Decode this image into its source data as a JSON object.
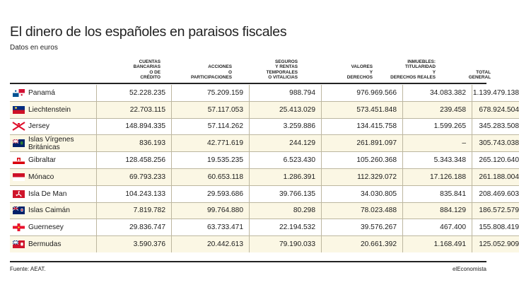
{
  "title": "El dinero de los españoles en paraisos fiscales",
  "subtitle": "Datos en euros",
  "headers": [
    "CUENTAS BANCARIAS O DE CRÉDITO",
    "ACCIONES O PARTICIPACIONES",
    "SEGUROS Y RENTAS TEMPORALES O VITALICIAS",
    "VALORES Y DERECHOS",
    "INMUEBLES: TITULARIDAD Y DERECHOS REALES",
    "TOTAL GENERAL"
  ],
  "rows": [
    {
      "name": "Panamá",
      "flag": "panama-flag-icon",
      "values": [
        "52.228.235",
        "75.209.159",
        "988.794",
        "976.969.566",
        "34.083.382",
        "1.139.479.138"
      ]
    },
    {
      "name": "Liechtenstein",
      "flag": "liechtenstein-flag-icon",
      "values": [
        "22.703.115",
        "57.117.053",
        "25.413.029",
        "573.451.848",
        "239.458",
        "678.924.504"
      ]
    },
    {
      "name": "Jersey",
      "flag": "jersey-flag-icon",
      "values": [
        "148.894.335",
        "57.114.262",
        "3.259.886",
        "134.415.758",
        "1.599.265",
        "345.283.508"
      ]
    },
    {
      "name": "Islas Vírgenes Británicas",
      "flag": "bvi-flag-icon",
      "values": [
        "836.193",
        "42.771.619",
        "244.129",
        "261.891.097",
        "–",
        "305.743.038"
      ]
    },
    {
      "name": "Gibraltar",
      "flag": "gibraltar-flag-icon",
      "values": [
        "128.458.256",
        "19.535.235",
        "6.523.430",
        "105.260.368",
        "5.343.348",
        "265.120.640"
      ]
    },
    {
      "name": "Mónaco",
      "flag": "monaco-flag-icon",
      "values": [
        "69.793.233",
        "60.653.118",
        "1.286.391",
        "112.329.072",
        "17.126.188",
        "261.188.004"
      ]
    },
    {
      "name": "Isla De Man",
      "flag": "isle-of-man-flag-icon",
      "values": [
        "104.243.133",
        "29.593.686",
        "39.766.135",
        "34.030.805",
        "835.841",
        "208.469.603"
      ]
    },
    {
      "name": "Islas Caimán",
      "flag": "cayman-flag-icon",
      "values": [
        "7.819.782",
        "99.764.880",
        "80.298",
        "78.023.488",
        "884.129",
        "186.572.579"
      ]
    },
    {
      "name": "Guernesey",
      "flag": "guernsey-flag-icon",
      "values": [
        "29.836.747",
        "63.733.471",
        "22.194.532",
        "39.576.267",
        "467.400",
        "155.808.419"
      ]
    },
    {
      "name": "Bermudas",
      "flag": "bermuda-flag-icon",
      "values": [
        "3.590.376",
        "20.442.613",
        "79.190.033",
        "20.661.392",
        "1.168.491",
        "125.052.909"
      ]
    }
  ],
  "source": "Fuente: AEAT.",
  "brand": "elEconomista",
  "colors": {
    "row_alt": "#fbf7e4",
    "grid": "#bdb7a0",
    "rule": "#222222"
  }
}
